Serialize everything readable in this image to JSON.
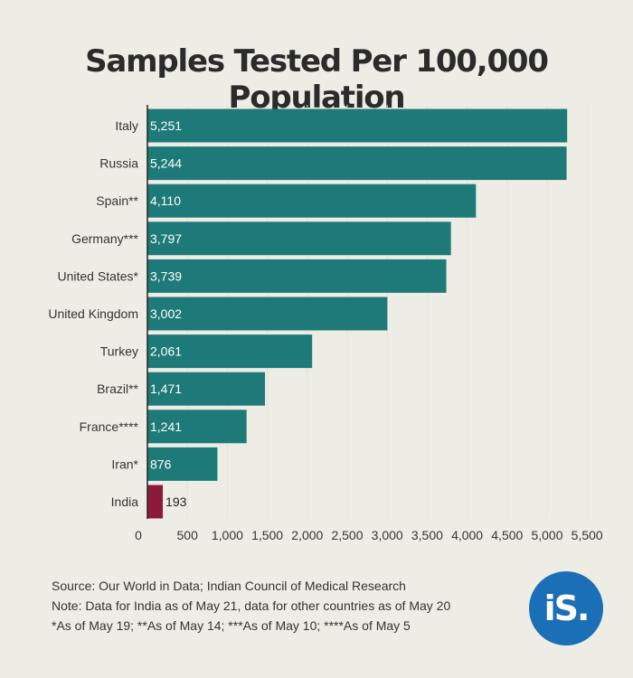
{
  "chart_data": {
    "type": "bar",
    "orientation": "horizontal",
    "title": "Samples Tested Per 100,000 Population",
    "categories": [
      "Italy",
      "Russia",
      "Spain**",
      "Germany***",
      "United States*",
      "United Kingdom",
      "Turkey",
      "Brazil**",
      "France****",
      "Iran*",
      "India"
    ],
    "values": [
      5251,
      5244,
      4110,
      3797,
      3739,
      3002,
      2061,
      1471,
      1241,
      876,
      193
    ],
    "value_labels": [
      "5,251",
      "5,244",
      "4,110",
      "3,797",
      "3,739",
      "3,002",
      "2,061",
      "1,471",
      "1,241",
      "876",
      "193"
    ],
    "x_ticks": [
      0,
      500,
      1000,
      1500,
      2000,
      2500,
      3000,
      3500,
      4000,
      4500,
      5000,
      5500
    ],
    "x_tick_labels": [
      "0",
      "500",
      "1,000",
      "1,500",
      "2,000",
      "2,500",
      "3,000",
      "3,500",
      "4,000",
      "4,500",
      "5,000",
      "5,500"
    ],
    "xlim": [
      0,
      5500
    ],
    "xlabel": "",
    "ylabel": "",
    "grid": true,
    "colors": {
      "default": "#1e7a78",
      "highlight": "#8c1a3a",
      "highlight_category": "India"
    }
  },
  "notes": {
    "source": "Source: Our World in Data; Indian Council of Medical Research",
    "note": "Note: Data for India as of May 21, data for other countries as of May 20",
    "footnote": "*As of May 19; **As of May 14; ***As of May 10; ****As of May 5"
  },
  "logo": {
    "text": "iS."
  }
}
